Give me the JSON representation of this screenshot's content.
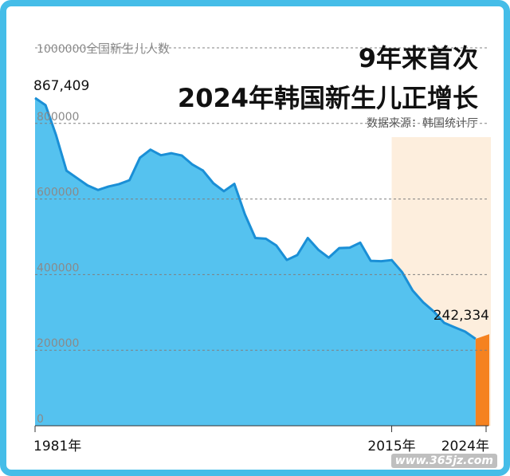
{
  "title_line1": "9年来首次",
  "title_line2": "2024年韩国新生儿正增长",
  "source": "数据来源：韩国统计厅",
  "watermark": "www.365jz.com",
  "colors": {
    "frame": "#45bde8",
    "area_fill": "#55c2ef",
    "area_line": "#1a8fd6",
    "highlight_bg": "#fdeedd",
    "highlight_bar": "#f58220",
    "grid": "#808080"
  },
  "chart_data": {
    "type": "area",
    "title": "9年来首次 2024年韩国新生儿正增长",
    "ylabel": "全国新生儿人数",
    "ylim": [
      0,
      1000000
    ],
    "yticks": [
      "0",
      "200000",
      "400000",
      "600000",
      "800000",
      "1000000"
    ],
    "ytick_values": [
      0,
      200000,
      400000,
      600000,
      800000,
      1000000
    ],
    "xtick_labels": [
      "1981年",
      "2015年",
      "2024年"
    ],
    "xtick_years": [
      1981,
      2015,
      2024
    ],
    "highlight_range": [
      2015,
      2024
    ],
    "annotations": [
      {
        "year": 1981,
        "value": 867409,
        "text": "867,409"
      },
      {
        "year": 2024,
        "value": 242334,
        "text": "242,334"
      }
    ],
    "grid": true,
    "series": [
      {
        "x": [
          1981,
          1982,
          1983,
          1984,
          1985,
          1986,
          1987,
          1988,
          1989,
          1990,
          1991,
          1992,
          1993,
          1994,
          1995,
          1996,
          1997,
          1998,
          1999,
          2000,
          2001,
          2002,
          2003,
          2004,
          2005,
          2006,
          2007,
          2008,
          2009,
          2010,
          2011,
          2012,
          2013,
          2014,
          2015,
          2016,
          2017,
          2018,
          2019,
          2020,
          2021,
          2022,
          2023,
          2024
        ],
        "values": [
          867409,
          848312,
          769155,
          674793,
          655489,
          636019,
          623831,
          633092,
          639431,
          649738,
          709275,
          730678,
          715826,
          721185,
          715020,
          691226,
          675394,
          641594,
          620668,
          640089,
          559934,
          496911,
          495036,
          476958,
          438707,
          451759,
          496822,
          465892,
          444849,
          470171,
          471265,
          484550,
          436455,
          435435,
          438420,
          406243,
          357771,
          326822,
          302676,
          272337,
          260562,
          249186,
          230028,
          242334
        ]
      }
    ]
  }
}
